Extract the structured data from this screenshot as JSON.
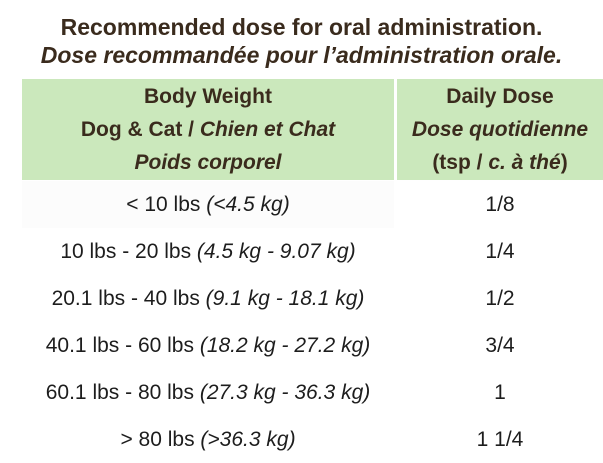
{
  "title": {
    "line1_en": "Recommended dose for oral administration.",
    "line2_fr": "Dose recommandée pour l’administration orale."
  },
  "table": {
    "header": {
      "weight": {
        "line1": "Body Weight",
        "line2_normal": "Dog & Cat / ",
        "line2_italic": "Chien et Chat",
        "line3": "Poids corporel"
      },
      "dose": {
        "line1": "Daily Dose",
        "line2": "Dose quotidienne",
        "line3_pre": "(tsp / ",
        "line3_italic": "c. à thé",
        "line3_post": ")"
      }
    },
    "rows": [
      {
        "weight": "< 10 lbs ",
        "weight_metric": "(<4.5 kg)",
        "dose": "1/8"
      },
      {
        "weight": "10 lbs - 20 lbs ",
        "weight_metric": "(4.5 kg - 9.07 kg)",
        "dose": "1/4"
      },
      {
        "weight": "20.1 lbs - 40 lbs ",
        "weight_metric": "(9.1 kg - 18.1 kg)",
        "dose": "1/2"
      },
      {
        "weight": "40.1 lbs - 60 lbs ",
        "weight_metric": "(18.2 kg - 27.2 kg)",
        "dose": "3/4"
      },
      {
        "weight": "60.1 lbs - 80 lbs ",
        "weight_metric": "(27.3 kg - 36.3 kg)",
        "dose": "1"
      },
      {
        "weight": "> 80 lbs ",
        "weight_metric": "(>36.3 kg)",
        "dose": "1 1/4"
      }
    ]
  },
  "colors": {
    "header_background": "#cbe8bc",
    "header_text": "#3a2b1d",
    "title_text": "#3a2b1d",
    "body_text": "#1d1d1d",
    "first_row_background": "#fcfcfc"
  }
}
